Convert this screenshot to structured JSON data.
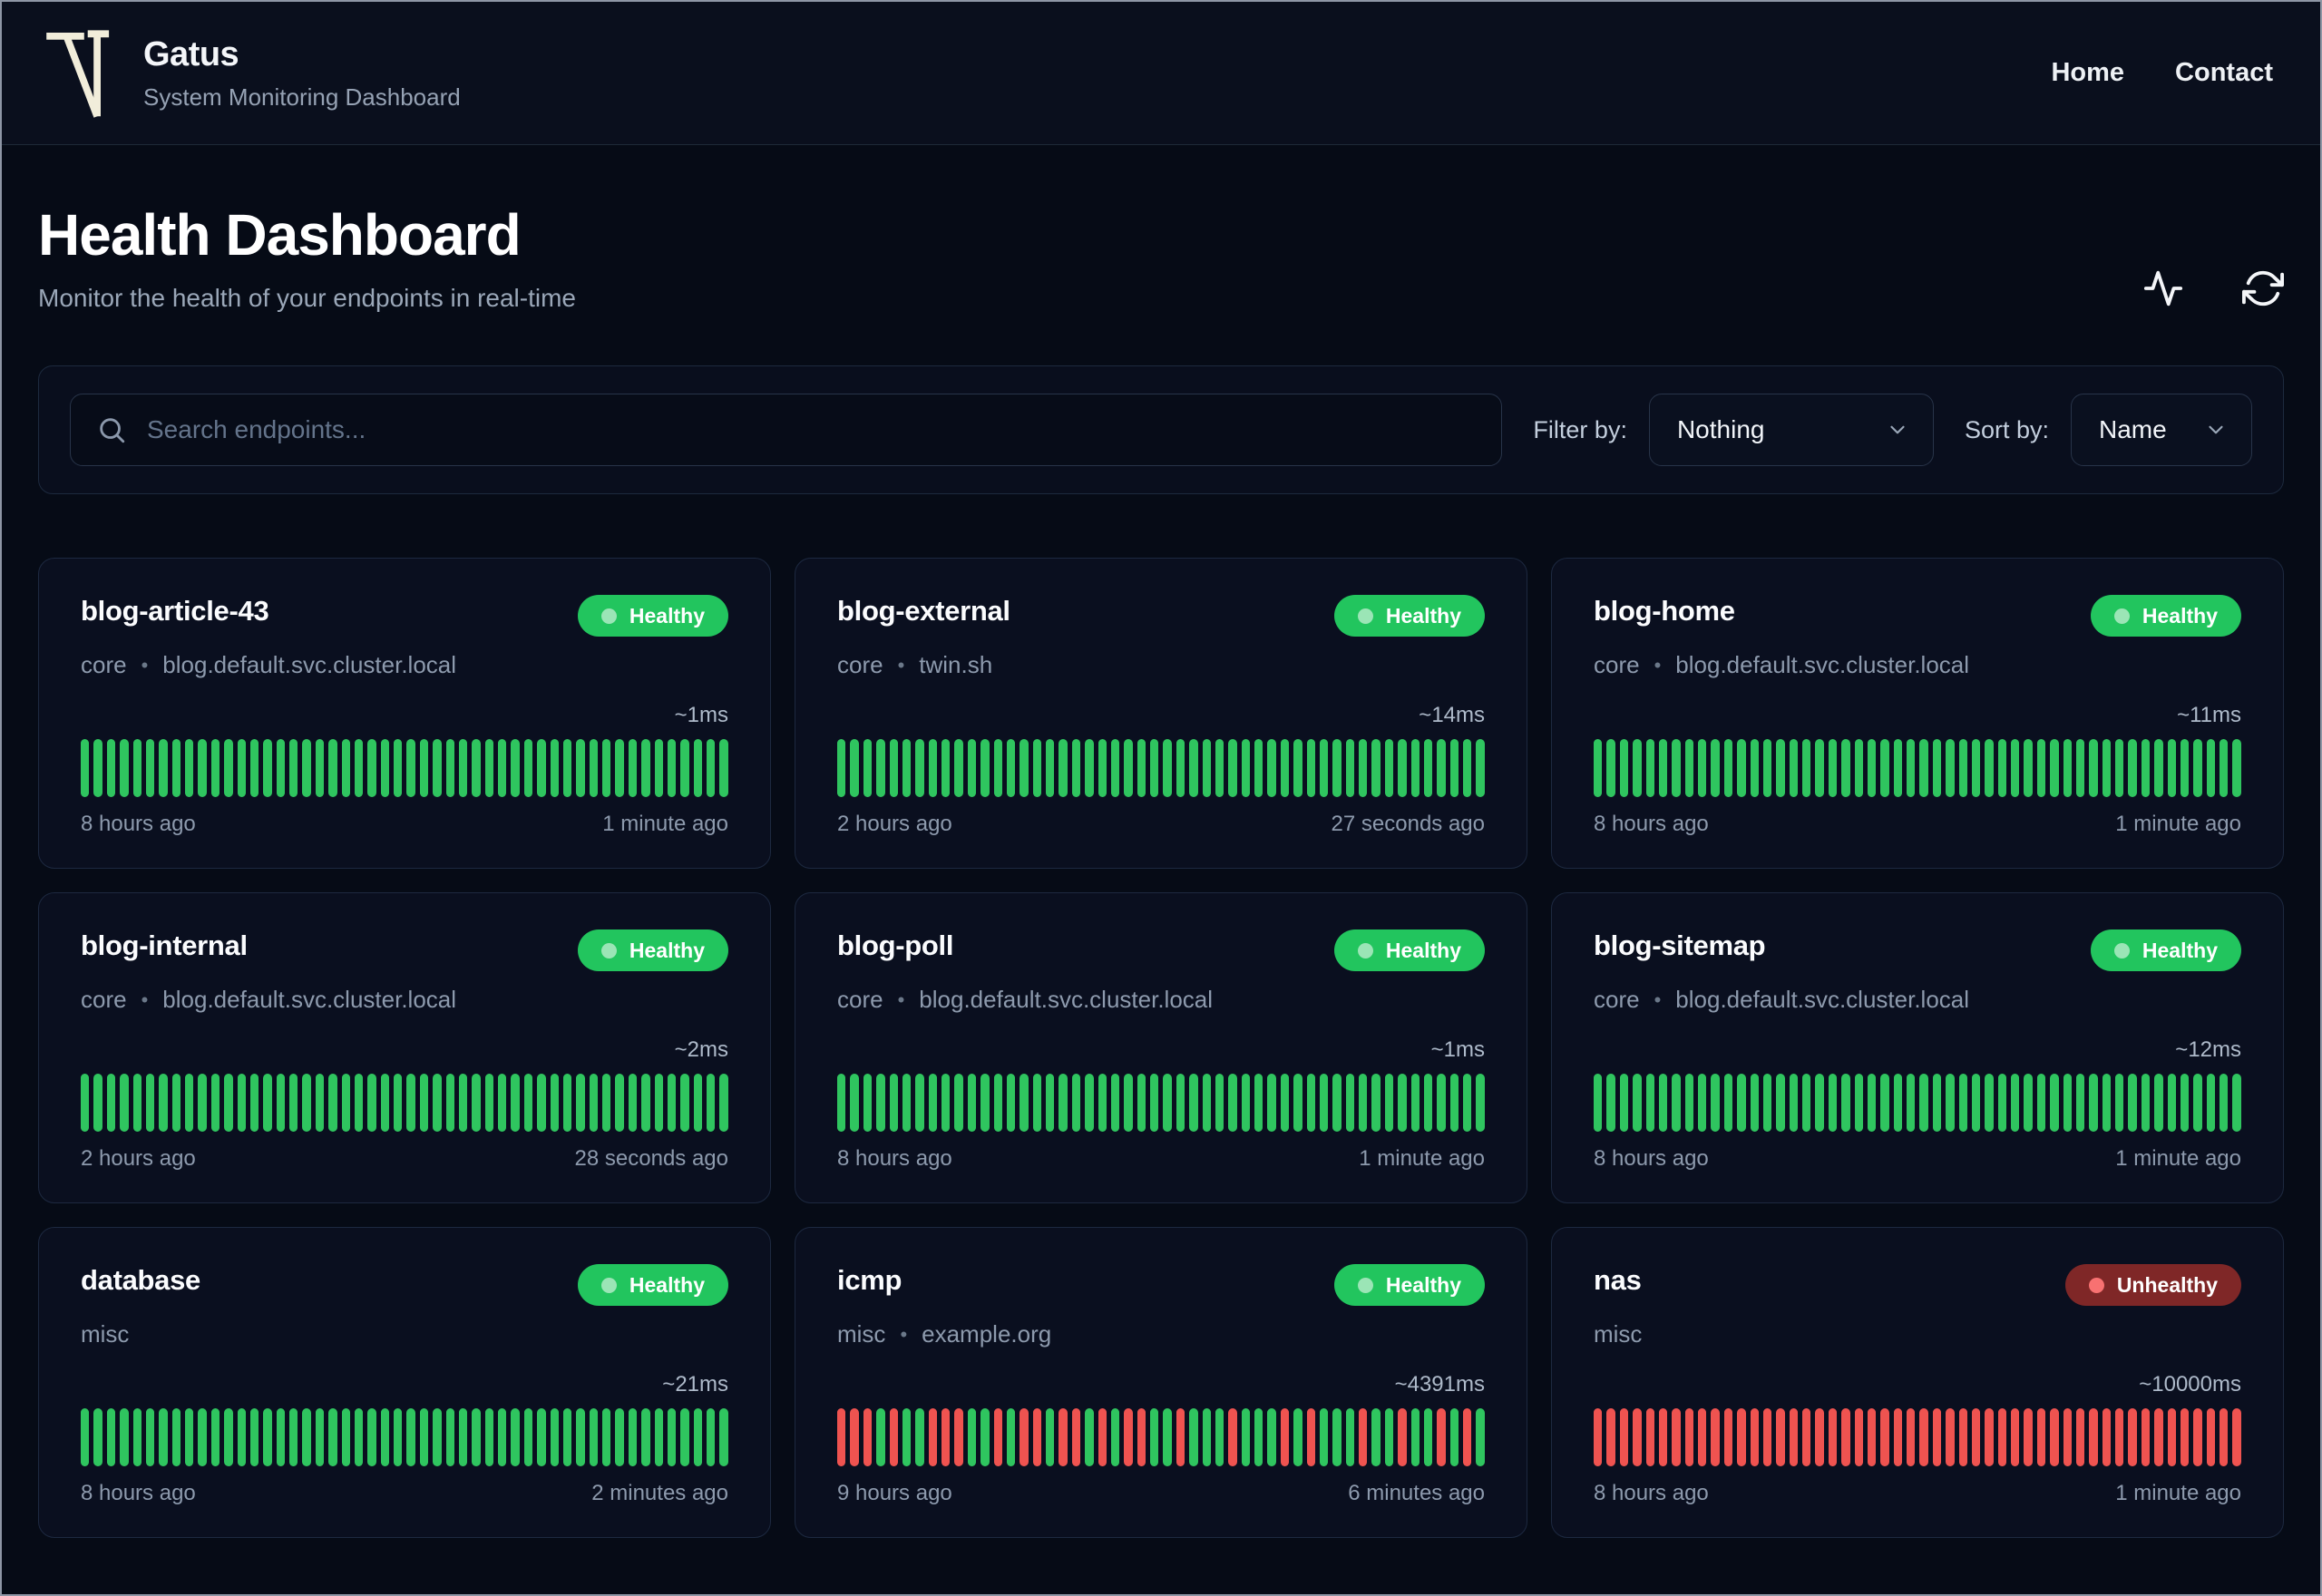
{
  "header": {
    "logo": "TN-monogram-icon",
    "title": "Gatus",
    "subtitle": "System Monitoring Dashboard",
    "nav": [
      {
        "label": "Home"
      },
      {
        "label": "Contact"
      }
    ]
  },
  "page": {
    "title": "Health Dashboard",
    "subtitle": "Monitor the health of your endpoints in real-time"
  },
  "toolbar": {
    "search_placeholder": "Search endpoints...",
    "filter_label": "Filter by:",
    "filter_value": "Nothing",
    "sort_label": "Sort by:",
    "sort_value": "Name"
  },
  "meta_separator": "•",
  "colors": {
    "badge_green": "#22c55e",
    "bar_up": "#2fc55f",
    "bar_down": "#ef5350",
    "unhealthy_bg": "#7f2727",
    "unhealthy_dot": "#f87171",
    "background": "#060b16",
    "card_background": "#0a0f1f"
  },
  "bar_legend": {
    "U": "successful check (green bar)",
    "D": "failed check (red bar)"
  },
  "endpoints": [
    {
      "name": "blog-article-43",
      "group": "core",
      "host": "blog.default.svc.cluster.local",
      "status": "Healthy",
      "latency": "~1ms",
      "from": "8 hours ago",
      "to": "1 minute ago",
      "bars": "UUUUUUUUUUUUUUUUUUUUUUUUUUUUUUUUUUUUUUUUUUUUUUUUUU"
    },
    {
      "name": "blog-external",
      "group": "core",
      "host": "twin.sh",
      "status": "Healthy",
      "latency": "~14ms",
      "from": "2 hours ago",
      "to": "27 seconds ago",
      "bars": "UUUUUUUUUUUUUUUUUUUUUUUUUUUUUUUUUUUUUUUUUUUUUUUUUU"
    },
    {
      "name": "blog-home",
      "group": "core",
      "host": "blog.default.svc.cluster.local",
      "status": "Healthy",
      "latency": "~11ms",
      "from": "8 hours ago",
      "to": "1 minute ago",
      "bars": "UUUUUUUUUUUUUUUUUUUUUUUUUUUUUUUUUUUUUUUUUUUUUUUUUU"
    },
    {
      "name": "blog-internal",
      "group": "core",
      "host": "blog.default.svc.cluster.local",
      "status": "Healthy",
      "latency": "~2ms",
      "from": "2 hours ago",
      "to": "28 seconds ago",
      "bars": "UUUUUUUUUUUUUUUUUUUUUUUUUUUUUUUUUUUUUUUUUUUUUUUUUU"
    },
    {
      "name": "blog-poll",
      "group": "core",
      "host": "blog.default.svc.cluster.local",
      "status": "Healthy",
      "latency": "~1ms",
      "from": "8 hours ago",
      "to": "1 minute ago",
      "bars": "UUUUUUUUUUUUUUUUUUUUUUUUUUUUUUUUUUUUUUUUUUUUUUUUUU"
    },
    {
      "name": "blog-sitemap",
      "group": "core",
      "host": "blog.default.svc.cluster.local",
      "status": "Healthy",
      "latency": "~12ms",
      "from": "8 hours ago",
      "to": "1 minute ago",
      "bars": "UUUUUUUUUUUUUUUUUUUUUUUUUUUUUUUUUUUUUUUUUUUUUUUUUU"
    },
    {
      "name": "database",
      "group": "misc",
      "host": "",
      "status": "Healthy",
      "latency": "~21ms",
      "from": "8 hours ago",
      "to": "2 minutes ago",
      "bars": "UUUUUUUUUUUUUUUUUUUUUUUUUUUUUUUUUUUUUUUUUUUUUUUUUU"
    },
    {
      "name": "icmp",
      "group": "misc",
      "host": "example.org",
      "status": "Healthy",
      "latency": "~4391ms",
      "from": "9 hours ago",
      "to": "6 minutes ago",
      "bars": "DDDUDUUDDDUUDUDDUDDUDUDDUUDUUUDUUUDUDUUUDUUDUUDUDU"
    },
    {
      "name": "nas",
      "group": "misc",
      "host": "",
      "status": "Unhealthy",
      "latency": "~10000ms",
      "from": "8 hours ago",
      "to": "1 minute ago",
      "bars": "DDDDDDDDDDDDDDDDDDDDDDDDDDDDDDDDDDDDDDDDDDDDDDDDDD"
    }
  ]
}
